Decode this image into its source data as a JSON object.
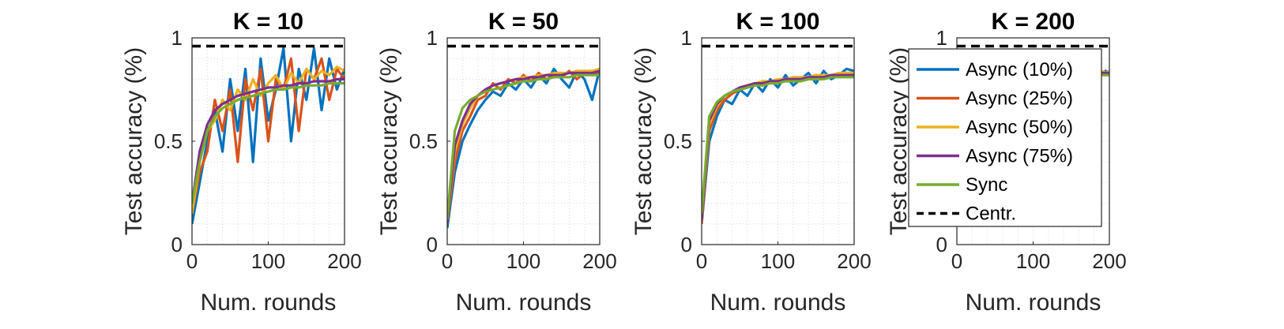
{
  "legend": [
    {
      "label": "Async (10%)",
      "color": "#0072BD",
      "dash": false
    },
    {
      "label": "Async (25%)",
      "color": "#D95319",
      "dash": false
    },
    {
      "label": "Async (50%)",
      "color": "#EDB120",
      "dash": false
    },
    {
      "label": "Async (75%)",
      "color": "#7E2F8E",
      "dash": false
    },
    {
      "label": "Sync",
      "color": "#77AC30",
      "dash": false
    },
    {
      "label": "Centr.",
      "color": "#000000",
      "dash": true
    }
  ],
  "chart_data": [
    {
      "type": "line",
      "title": "K = 10",
      "xlabel": "Num. rounds",
      "ylabel": "Test accuracy (%)",
      "xlim": [
        0,
        200
      ],
      "ylim": [
        0,
        1
      ],
      "xticks": [
        "0",
        "100",
        "200"
      ],
      "yticks": [
        "0",
        "0.5",
        "1"
      ],
      "grid": true,
      "centralized": 0.96,
      "series": [
        {
          "name": "Async (10%)",
          "color": "#0072BD",
          "x": [
            0,
            10,
            20,
            30,
            40,
            50,
            60,
            70,
            80,
            90,
            100,
            110,
            120,
            130,
            140,
            150,
            160,
            170,
            180,
            190,
            200
          ],
          "y": [
            0.1,
            0.3,
            0.5,
            0.65,
            0.45,
            0.8,
            0.55,
            0.85,
            0.4,
            0.9,
            0.6,
            0.75,
            0.95,
            0.5,
            0.85,
            0.7,
            0.95,
            0.65,
            0.9,
            0.75,
            0.85
          ]
        },
        {
          "name": "Async (25%)",
          "color": "#D95319",
          "x": [
            0,
            10,
            20,
            30,
            40,
            50,
            60,
            70,
            80,
            90,
            100,
            110,
            120,
            130,
            140,
            150,
            160,
            170,
            180,
            190,
            200
          ],
          "y": [
            0.15,
            0.35,
            0.45,
            0.7,
            0.55,
            0.75,
            0.4,
            0.8,
            0.65,
            0.85,
            0.5,
            0.8,
            0.75,
            0.9,
            0.55,
            0.85,
            0.8,
            0.9,
            0.7,
            0.85,
            0.8
          ]
        },
        {
          "name": "Async (50%)",
          "color": "#EDB120",
          "x": [
            0,
            10,
            20,
            30,
            40,
            50,
            60,
            70,
            80,
            90,
            100,
            110,
            120,
            130,
            140,
            150,
            160,
            170,
            180,
            190,
            200
          ],
          "y": [
            0.15,
            0.4,
            0.55,
            0.6,
            0.7,
            0.65,
            0.75,
            0.7,
            0.8,
            0.72,
            0.78,
            0.82,
            0.75,
            0.83,
            0.78,
            0.85,
            0.8,
            0.84,
            0.82,
            0.86,
            0.84
          ]
        },
        {
          "name": "Async (75%)",
          "color": "#7E2F8E",
          "x": [
            0,
            10,
            20,
            30,
            40,
            50,
            60,
            70,
            80,
            90,
            100,
            110,
            120,
            130,
            140,
            150,
            160,
            170,
            180,
            190,
            200
          ],
          "y": [
            0.2,
            0.45,
            0.58,
            0.65,
            0.68,
            0.7,
            0.72,
            0.73,
            0.74,
            0.75,
            0.76,
            0.76,
            0.77,
            0.77,
            0.78,
            0.78,
            0.79,
            0.79,
            0.79,
            0.8,
            0.8
          ]
        },
        {
          "name": "Sync",
          "color": "#77AC30",
          "x": [
            0,
            10,
            20,
            30,
            40,
            50,
            60,
            70,
            80,
            90,
            100,
            110,
            120,
            130,
            140,
            150,
            160,
            170,
            180,
            190,
            200
          ],
          "y": [
            0.2,
            0.4,
            0.55,
            0.62,
            0.66,
            0.68,
            0.7,
            0.71,
            0.72,
            0.73,
            0.74,
            0.75,
            0.75,
            0.76,
            0.76,
            0.77,
            0.77,
            0.77,
            0.78,
            0.78,
            0.78
          ]
        }
      ]
    },
    {
      "type": "line",
      "title": "K = 50",
      "xlabel": "Num. rounds",
      "ylabel": "Test accuracy (%)",
      "xlim": [
        0,
        200
      ],
      "ylim": [
        0,
        1
      ],
      "xticks": [
        "0",
        "100",
        "200"
      ],
      "yticks": [
        "0",
        "0.5",
        "1"
      ],
      "grid": true,
      "centralized": 0.96,
      "series": [
        {
          "name": "Async (10%)",
          "color": "#0072BD",
          "x": [
            0,
            10,
            20,
            30,
            40,
            50,
            60,
            70,
            80,
            90,
            100,
            110,
            120,
            130,
            140,
            150,
            160,
            170,
            180,
            190,
            200
          ],
          "y": [
            0.08,
            0.35,
            0.5,
            0.58,
            0.65,
            0.7,
            0.74,
            0.72,
            0.78,
            0.75,
            0.8,
            0.76,
            0.82,
            0.78,
            0.85,
            0.8,
            0.76,
            0.84,
            0.8,
            0.7,
            0.85
          ]
        },
        {
          "name": "Async (25%)",
          "color": "#D95319",
          "x": [
            0,
            10,
            20,
            30,
            40,
            50,
            60,
            70,
            80,
            90,
            100,
            110,
            120,
            130,
            140,
            150,
            160,
            170,
            180,
            190,
            200
          ],
          "y": [
            0.1,
            0.4,
            0.55,
            0.62,
            0.7,
            0.72,
            0.78,
            0.75,
            0.8,
            0.78,
            0.82,
            0.79,
            0.83,
            0.8,
            0.82,
            0.81,
            0.84,
            0.8,
            0.83,
            0.82,
            0.84
          ]
        },
        {
          "name": "Async (50%)",
          "color": "#EDB120",
          "x": [
            0,
            10,
            20,
            30,
            40,
            50,
            60,
            70,
            80,
            90,
            100,
            110,
            120,
            130,
            140,
            150,
            160,
            170,
            180,
            190,
            200
          ],
          "y": [
            0.1,
            0.45,
            0.58,
            0.66,
            0.72,
            0.75,
            0.77,
            0.78,
            0.79,
            0.8,
            0.81,
            0.81,
            0.82,
            0.82,
            0.83,
            0.83,
            0.83,
            0.84,
            0.84,
            0.84,
            0.85
          ]
        },
        {
          "name": "Async (75%)",
          "color": "#7E2F8E",
          "x": [
            0,
            10,
            20,
            30,
            40,
            50,
            60,
            70,
            80,
            90,
            100,
            110,
            120,
            130,
            140,
            150,
            160,
            170,
            180,
            190,
            200
          ],
          "y": [
            0.1,
            0.48,
            0.6,
            0.68,
            0.72,
            0.75,
            0.77,
            0.78,
            0.79,
            0.8,
            0.8,
            0.81,
            0.81,
            0.82,
            0.82,
            0.82,
            0.83,
            0.83,
            0.83,
            0.83,
            0.84
          ]
        },
        {
          "name": "Sync",
          "color": "#77AC30",
          "x": [
            0,
            10,
            20,
            30,
            40,
            50,
            60,
            70,
            80,
            90,
            100,
            110,
            120,
            130,
            140,
            150,
            160,
            170,
            180,
            190,
            200
          ],
          "y": [
            0.12,
            0.55,
            0.66,
            0.7,
            0.72,
            0.74,
            0.75,
            0.76,
            0.77,
            0.78,
            0.79,
            0.79,
            0.8,
            0.8,
            0.81,
            0.81,
            0.81,
            0.82,
            0.82,
            0.82,
            0.82
          ]
        }
      ]
    },
    {
      "type": "line",
      "title": "K = 100",
      "xlabel": "Num. rounds",
      "ylabel": "Test accuracy (%)",
      "xlim": [
        0,
        200
      ],
      "ylim": [
        0,
        1
      ],
      "xticks": [
        "0",
        "100",
        "200"
      ],
      "yticks": [
        "0",
        "0.5",
        "1"
      ],
      "grid": true,
      "centralized": 0.96,
      "series": [
        {
          "name": "Async (10%)",
          "color": "#0072BD",
          "x": [
            0,
            10,
            20,
            30,
            40,
            50,
            60,
            70,
            80,
            90,
            100,
            110,
            120,
            130,
            140,
            150,
            160,
            170,
            180,
            190,
            200
          ],
          "y": [
            0.1,
            0.5,
            0.62,
            0.7,
            0.68,
            0.75,
            0.72,
            0.78,
            0.74,
            0.8,
            0.76,
            0.82,
            0.77,
            0.8,
            0.83,
            0.78,
            0.84,
            0.8,
            0.82,
            0.85,
            0.84
          ]
        },
        {
          "name": "Async (25%)",
          "color": "#D95319",
          "x": [
            0,
            10,
            20,
            30,
            40,
            50,
            60,
            70,
            80,
            90,
            100,
            110,
            120,
            130,
            140,
            150,
            160,
            170,
            180,
            190,
            200
          ],
          "y": [
            0.1,
            0.55,
            0.65,
            0.7,
            0.73,
            0.75,
            0.76,
            0.78,
            0.77,
            0.79,
            0.79,
            0.8,
            0.8,
            0.81,
            0.8,
            0.82,
            0.81,
            0.82,
            0.82,
            0.83,
            0.83
          ]
        },
        {
          "name": "Async (50%)",
          "color": "#EDB120",
          "x": [
            0,
            10,
            20,
            30,
            40,
            50,
            60,
            70,
            80,
            90,
            100,
            110,
            120,
            130,
            140,
            150,
            160,
            170,
            180,
            190,
            200
          ],
          "y": [
            0.12,
            0.58,
            0.67,
            0.72,
            0.74,
            0.76,
            0.77,
            0.78,
            0.79,
            0.79,
            0.8,
            0.8,
            0.81,
            0.81,
            0.81,
            0.82,
            0.82,
            0.82,
            0.83,
            0.83,
            0.83
          ]
        },
        {
          "name": "Async (75%)",
          "color": "#7E2F8E",
          "x": [
            0,
            10,
            20,
            30,
            40,
            50,
            60,
            70,
            80,
            90,
            100,
            110,
            120,
            130,
            140,
            150,
            160,
            170,
            180,
            190,
            200
          ],
          "y": [
            0.12,
            0.6,
            0.68,
            0.72,
            0.74,
            0.76,
            0.77,
            0.78,
            0.78,
            0.79,
            0.79,
            0.8,
            0.8,
            0.8,
            0.81,
            0.81,
            0.81,
            0.82,
            0.82,
            0.82,
            0.82
          ]
        },
        {
          "name": "Sync",
          "color": "#77AC30",
          "x": [
            0,
            10,
            20,
            30,
            40,
            50,
            60,
            70,
            80,
            90,
            100,
            110,
            120,
            130,
            140,
            150,
            160,
            170,
            180,
            190,
            200
          ],
          "y": [
            0.15,
            0.62,
            0.69,
            0.72,
            0.74,
            0.75,
            0.76,
            0.77,
            0.77,
            0.78,
            0.78,
            0.79,
            0.79,
            0.79,
            0.8,
            0.8,
            0.8,
            0.81,
            0.81,
            0.81,
            0.81
          ]
        }
      ]
    },
    {
      "type": "line",
      "title": "K = 200",
      "xlabel": "Num. rounds",
      "ylabel": "Test accuracy (%)",
      "xlim": [
        0,
        200
      ],
      "ylim": [
        0,
        1
      ],
      "xticks": [
        "0",
        "100",
        "200"
      ],
      "yticks": [
        "0",
        "0.5",
        "1"
      ],
      "grid": true,
      "centralized": 0.96,
      "legend_position": "inside, covering the plot",
      "series": [
        {
          "name": "Async (10%)",
          "color": "#0072BD",
          "x": [
            190,
            195,
            200
          ],
          "y": [
            0.82,
            0.84,
            0.83
          ]
        },
        {
          "name": "Async (25%)",
          "color": "#D95319",
          "x": [
            190,
            195,
            200
          ],
          "y": [
            0.83,
            0.82,
            0.84
          ]
        },
        {
          "name": "Async (50%)",
          "color": "#EDB120",
          "x": [
            190,
            195,
            200
          ],
          "y": [
            0.84,
            0.83,
            0.84
          ]
        },
        {
          "name": "Async (75%)",
          "color": "#7E2F8E",
          "x": [
            190,
            195,
            200
          ],
          "y": [
            0.83,
            0.83,
            0.83
          ]
        },
        {
          "name": "Sync",
          "color": "#77AC30",
          "x": [
            190,
            195,
            200
          ],
          "y": [
            0.82,
            0.82,
            0.82
          ]
        }
      ]
    }
  ]
}
